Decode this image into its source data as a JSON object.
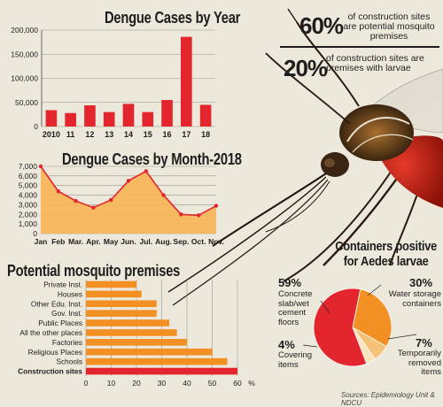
{
  "stats": {
    "s1_value": "60%",
    "s1_text": "of construction sites are potential mosquito premises",
    "s2_value": "20%",
    "s2_text": "of construction sites are premises with larvae"
  },
  "colors": {
    "red": "#e3262d",
    "orange": "#f39023",
    "light_orange": "#f6c27a",
    "area_fill": "#f7b558",
    "bg": "#ede8dc"
  },
  "source": "Sources: Epidemiology Unit & NDCU",
  "chart_data": [
    {
      "type": "bar",
      "title": "Dengue Cases by Year",
      "categories": [
        "2010",
        "11",
        "12",
        "13",
        "14",
        "15",
        "16",
        "17",
        "18"
      ],
      "values": [
        34000,
        28000,
        44000,
        30000,
        47000,
        30000,
        55000,
        186000,
        45000
      ],
      "ylim": [
        0,
        200000
      ],
      "yticks": [
        "0",
        "50,000",
        "100,000",
        "150,000",
        "200,000"
      ],
      "grid": true
    },
    {
      "type": "area",
      "title": "Dengue Cases by Month-2018",
      "categories": [
        "Jan",
        "Feb",
        "Mar.",
        "Apr.",
        "May",
        "Jun.",
        "Jul.",
        "Aug.",
        "Sep.",
        "Oct.",
        "Nov."
      ],
      "values": [
        7000,
        4400,
        3400,
        2700,
        3500,
        5500,
        6500,
        4000,
        2000,
        1900,
        2900
      ],
      "ylim": [
        0,
        7000
      ],
      "yticks": [
        "0",
        "1,000",
        "2,000",
        "3,000",
        "4,000",
        "5,000",
        "6,000",
        "7,000"
      ],
      "grid": true
    },
    {
      "type": "bar",
      "orientation": "horizontal",
      "title": "Potential mosquito premises",
      "categories": [
        "Private Inst.",
        "Houses",
        "Other Edu. Inst.",
        "Gov. Inst.",
        "Public Places",
        "All the other places",
        "Factories",
        "Religious Places",
        "Schools",
        "Construction sites"
      ],
      "values": [
        20,
        22,
        28,
        28,
        33,
        36,
        40,
        50,
        56,
        60
      ],
      "xlim": [
        0,
        60
      ],
      "xticks": [
        "0",
        "10",
        "20",
        "30",
        "40",
        "50",
        "60"
      ],
      "xunit": "%",
      "grid": true
    },
    {
      "type": "pie",
      "title": "Containers positive for Aedes larvae",
      "slices": [
        {
          "label": "Concrete slab/wet cement floors",
          "pct_label": "59%",
          "value": 59
        },
        {
          "label": "Water storage containers",
          "pct_label": "30%",
          "value": 30
        },
        {
          "label": "Temporarily removed items",
          "pct_label": "7%",
          "value": 7
        },
        {
          "label": "Covering items",
          "pct_label": "4%",
          "value": 4
        }
      ]
    }
  ]
}
